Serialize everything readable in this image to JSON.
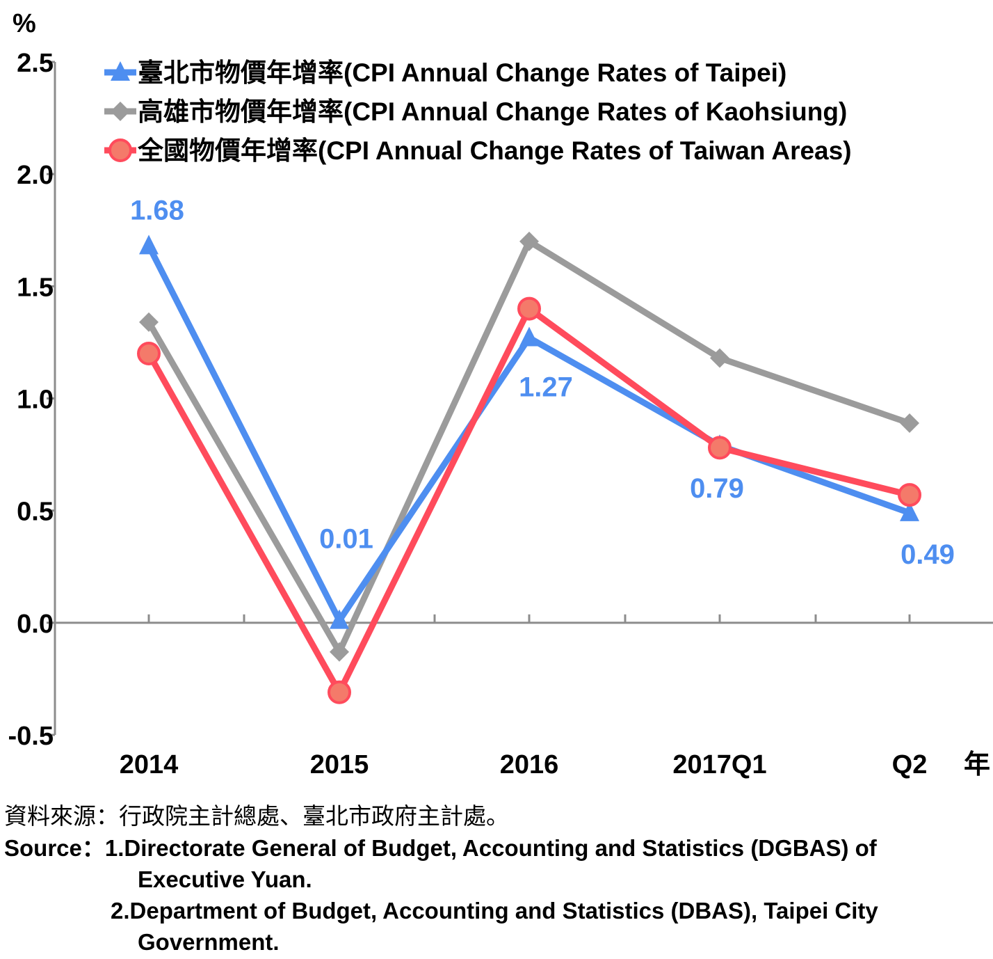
{
  "chart_data": {
    "type": "line",
    "unit_label": "%",
    "x_axis_suffix": "年",
    "categories": [
      "2014",
      "2015",
      "2016",
      "2017Q1",
      "Q2"
    ],
    "ylim": [
      -0.5,
      2.5
    ],
    "yticks": [
      "2.5",
      "2.0",
      "1.5",
      "1.0",
      "0.5",
      "0.0",
      "-0.5"
    ],
    "ytick_values": [
      2.5,
      2.0,
      1.5,
      1.0,
      0.5,
      0.0,
      -0.5
    ],
    "grid": false,
    "legend_position": "top",
    "series": [
      {
        "name": "臺北市物價年增率(CPI Annual Change Rates of Taipei)",
        "color": "#4e8ef0",
        "marker": "triangle",
        "values": [
          1.68,
          0.01,
          1.27,
          0.79,
          0.49
        ],
        "data_labels": [
          "1.68",
          "0.01",
          "1.27",
          "0.79",
          "0.49"
        ]
      },
      {
        "name": "高雄市物價年增率(CPI Annual Change Rates of Kaohsiung)",
        "color": "#9b9b9b",
        "marker": "diamond",
        "values": [
          1.34,
          -0.13,
          1.7,
          1.18,
          0.89
        ]
      },
      {
        "name": "全國物價年增率(CPI Annual Change Rates of Taiwan Areas)",
        "color": "#ff4b5c",
        "marker": "circle",
        "marker_fill": "#f47a6a",
        "values": [
          1.2,
          -0.31,
          1.4,
          0.78,
          0.57
        ]
      }
    ]
  },
  "source": {
    "zh": "資料來源：行政院主計總處、臺北市政府主計處。",
    "en_prefix": "Source：",
    "en_line1": "1.Directorate General of Budget, Accounting and Statistics (DGBAS) of",
    "en_line2": "Executive Yuan.",
    "en_line3": "2.Department of Budget, Accounting and Statistics (DBAS), Taipei City",
    "en_line4": "Government."
  }
}
